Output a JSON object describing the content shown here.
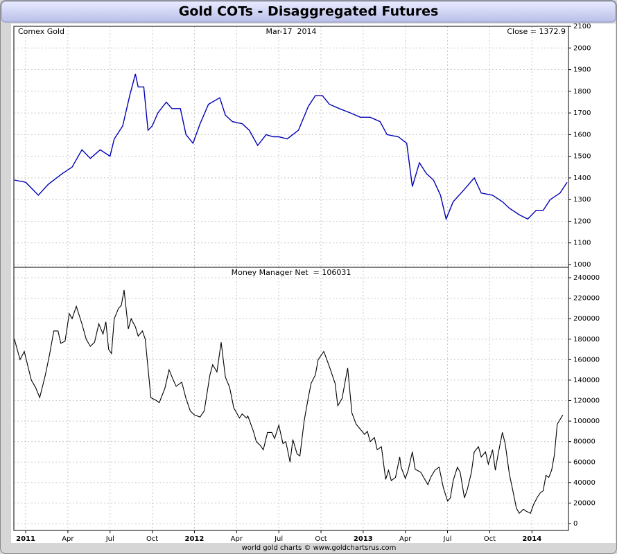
{
  "title": "Gold COTs - Disaggregated Futures",
  "footer": "world gold charts © www.goldchartsrus.com",
  "chart_data": [
    {
      "type": "line",
      "annotations": [
        "Comex Gold",
        "Mar-17  2014",
        "Close = 1372.9"
      ],
      "color": "#0000b4",
      "xlim": [
        -0.84,
        38.6
      ],
      "ylim": [
        1000,
        2100
      ],
      "yticks": [
        1000,
        1100,
        1200,
        1300,
        1400,
        1500,
        1600,
        1700,
        1800,
        1900,
        2000,
        2100
      ],
      "grid": true,
      "x": [
        -0.8,
        0,
        0.9,
        1.6,
        2.6,
        3.3,
        4.0,
        4.6,
        5.3,
        6.0,
        6.3,
        6.9,
        7.4,
        7.8,
        8.0,
        8.4,
        8.7,
        9.0,
        9.4,
        10.0,
        10.4,
        11.0,
        11.4,
        11.9,
        12.4,
        13.0,
        13.8,
        14.2,
        14.7,
        15.4,
        15.9,
        16.5,
        17.1,
        17.6,
        18.0,
        18.6,
        19.4,
        20.1,
        20.6,
        21.1,
        21.6,
        22.3,
        23.1,
        23.8,
        24.5,
        25.2,
        25.7,
        26.5,
        27.1,
        27.5,
        28.0,
        28.5,
        29.0,
        29.5,
        29.9,
        30.4,
        31.1,
        31.9,
        32.4,
        33.2,
        33.9,
        34.4,
        35.1,
        35.7,
        36.3,
        36.8,
        37.3,
        38.0,
        38.5
      ],
      "values": [
        1390,
        1380,
        1320,
        1370,
        1420,
        1450,
        1530,
        1490,
        1530,
        1500,
        1580,
        1640,
        1780,
        1880,
        1820,
        1820,
        1620,
        1640,
        1700,
        1750,
        1720,
        1720,
        1600,
        1560,
        1650,
        1740,
        1770,
        1690,
        1660,
        1650,
        1620,
        1550,
        1600,
        1590,
        1590,
        1580,
        1620,
        1730,
        1780,
        1780,
        1740,
        1720,
        1700,
        1680,
        1680,
        1660,
        1600,
        1590,
        1560,
        1360,
        1470,
        1420,
        1390,
        1320,
        1210,
        1290,
        1340,
        1400,
        1330,
        1320,
        1290,
        1260,
        1230,
        1210,
        1250,
        1250,
        1300,
        1330,
        1380
      ]
    },
    {
      "type": "line",
      "annotations": [
        "Money Manager Net  = 106031"
      ],
      "color": "#000000",
      "xlim": [
        -0.84,
        38.6
      ],
      "xticks": [
        {
          "value": 0,
          "label": "2011"
        },
        {
          "value": 3,
          "label": "Apr"
        },
        {
          "value": 6,
          "label": "Jul"
        },
        {
          "value": 9,
          "label": "Oct"
        },
        {
          "value": 12,
          "label": "2012"
        },
        {
          "value": 15,
          "label": "Apr"
        },
        {
          "value": 18,
          "label": "Jul"
        },
        {
          "value": 21,
          "label": "Oct"
        },
        {
          "value": 24,
          "label": "2013"
        },
        {
          "value": 27,
          "label": "Apr"
        },
        {
          "value": 30,
          "label": "Jul"
        },
        {
          "value": 33,
          "label": "Oct"
        },
        {
          "value": 36,
          "label": "2014"
        }
      ],
      "ylim": [
        0,
        240000
      ],
      "yticks": [
        0,
        20000,
        40000,
        60000,
        80000,
        100000,
        120000,
        140000,
        160000,
        180000,
        200000,
        220000,
        240000
      ],
      "grid": true,
      "x": [
        -0.8,
        -0.4,
        -0.1,
        0.4,
        0.7,
        1.0,
        1.4,
        1.7,
        2.0,
        2.3,
        2.5,
        2.8,
        3.1,
        3.3,
        3.6,
        4.0,
        4.3,
        4.6,
        4.9,
        5.2,
        5.5,
        5.7,
        5.9,
        6.1,
        6.3,
        6.6,
        6.8,
        7.0,
        7.3,
        7.5,
        7.8,
        8.0,
        8.3,
        8.5,
        8.9,
        9.3,
        9.5,
        9.9,
        10.2,
        10.5,
        10.7,
        11.1,
        11.4,
        11.7,
        12.0,
        12.4,
        12.7,
        13.1,
        13.3,
        13.6,
        13.9,
        14.2,
        14.5,
        14.8,
        15.2,
        15.4,
        15.7,
        15.8,
        16.2,
        16.4,
        16.7,
        16.9,
        17.2,
        17.5,
        17.7,
        18.0,
        18.3,
        18.5,
        18.8,
        19.0,
        19.3,
        19.5,
        19.8,
        20.1,
        20.3,
        20.6,
        20.8,
        21.2,
        21.6,
        22.0,
        22.2,
        22.5,
        22.9,
        23.2,
        23.5,
        23.8,
        24.1,
        24.3,
        24.5,
        24.8,
        25.0,
        25.3,
        25.6,
        25.8,
        26.0,
        26.3,
        26.6,
        26.7,
        27.0,
        27.2,
        27.5,
        27.7,
        28.1,
        28.3,
        28.6,
        28.8,
        29.1,
        29.4,
        29.7,
        30.0,
        30.2,
        30.4,
        30.7,
        30.9,
        31.2,
        31.4,
        31.7,
        31.9,
        32.2,
        32.4,
        32.7,
        32.9,
        33.2,
        33.4,
        33.6,
        33.9,
        34.1,
        34.4,
        34.6,
        34.9,
        35.1,
        35.4,
        35.6,
        35.9,
        36.1,
        36.4,
        36.6,
        36.8,
        37.0,
        37.2,
        37.4,
        37.6,
        37.8,
        38.2
      ],
      "values": [
        180000,
        160000,
        168000,
        140000,
        133000,
        123000,
        145000,
        165000,
        188000,
        188000,
        176000,
        178000,
        205000,
        200000,
        212000,
        195000,
        180000,
        173000,
        177000,
        195000,
        185000,
        197000,
        170000,
        166000,
        200000,
        210000,
        213000,
        228000,
        190000,
        200000,
        192000,
        183000,
        188000,
        180000,
        123000,
        120000,
        118000,
        132000,
        150000,
        140000,
        134000,
        138000,
        122000,
        110000,
        106000,
        104000,
        110000,
        145000,
        155000,
        148000,
        177000,
        143000,
        133000,
        113000,
        103000,
        107000,
        103000,
        105000,
        90000,
        80000,
        76000,
        72000,
        89000,
        89000,
        83000,
        96000,
        78000,
        80000,
        60000,
        82000,
        68000,
        66000,
        100000,
        123000,
        137000,
        145000,
        160000,
        168000,
        153000,
        137000,
        115000,
        122000,
        152000,
        108000,
        97000,
        92000,
        87000,
        90000,
        80000,
        84000,
        72000,
        75000,
        43000,
        52000,
        42000,
        45000,
        65000,
        55000,
        44000,
        52000,
        70000,
        53000,
        50000,
        45000,
        38000,
        45000,
        52000,
        55000,
        35000,
        22000,
        25000,
        42000,
        55000,
        50000,
        25000,
        33000,
        50000,
        70000,
        75000,
        65000,
        70000,
        58000,
        72000,
        52000,
        68000,
        89000,
        78000,
        48000,
        35000,
        15000,
        10000,
        14000,
        12000,
        10000,
        18000,
        26000,
        30000,
        32000,
        47000,
        45000,
        52000,
        67000,
        97000,
        106000
      ]
    }
  ]
}
